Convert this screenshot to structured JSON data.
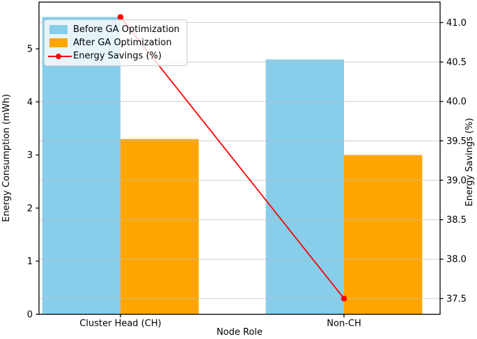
{
  "chart_data": {
    "type": "bar",
    "title": "",
    "categories": [
      "Cluster Head (CH)",
      "Non-CH"
    ],
    "series": [
      {
        "name": "Before GA Optimization",
        "type": "bar",
        "axis": "left",
        "color": "#87CEEB",
        "values": [
          5.6,
          4.8
        ]
      },
      {
        "name": "After GA Optimization",
        "type": "bar",
        "axis": "left",
        "color": "#FFA500",
        "values": [
          3.3,
          3.0
        ]
      },
      {
        "name": "Energy Savings (%)",
        "type": "line",
        "axis": "right",
        "color": "#ff0000",
        "marker": "circle",
        "values": [
          41.07,
          37.5
        ]
      }
    ],
    "xlabel": "Node Role",
    "left_axis": {
      "label": "Energy Consumption (mWh)",
      "ticks": [
        0,
        1,
        2,
        3,
        4,
        5
      ],
      "lim": [
        0,
        5.88
      ],
      "decimals": 0,
      "label_color": "#000000"
    },
    "right_axis": {
      "label": "Energy Savings (%)",
      "ticks": [
        37.5,
        38.0,
        38.5,
        39.0,
        39.5,
        40.0,
        40.5,
        41.0
      ],
      "lim": [
        37.3,
        41.26
      ],
      "decimals": 1,
      "label_color": "#ff0000"
    },
    "bar_width_frac": 0.35,
    "grid": {
      "axis": "right",
      "orientation": "horizontal",
      "on": true
    },
    "legend_position": "upper left",
    "colors": {
      "grid": "#bdbdbd",
      "spine": "#000000",
      "tick_text": "#000000",
      "background": "#ffffff"
    }
  }
}
